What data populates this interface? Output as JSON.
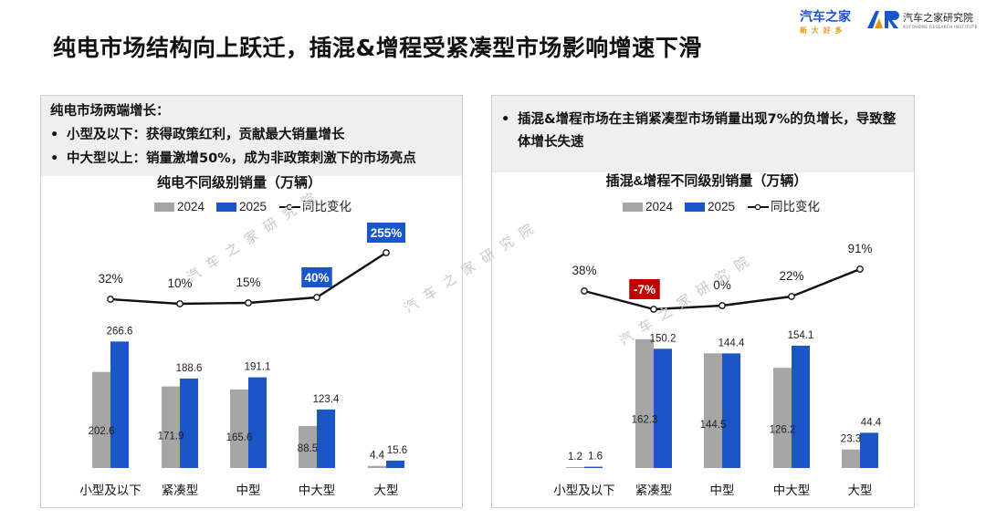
{
  "page": {
    "title": "纯电市场结构向上跃迁，插混&增程受紧凑型市场影响增速下滑",
    "watermark": "汽车之家研究院"
  },
  "logos": {
    "autohome": {
      "name": "汽车之家",
      "tagline": "新 大 好 多"
    },
    "institute": {
      "name": "汽车之家研究院",
      "english": "AUTOHOME RESEARCH INSTITUTE"
    }
  },
  "colors": {
    "s2024": "#a6a6a6",
    "s2025": "#1a56c8",
    "yoy_line": "#111111",
    "highlight_box": "#1a56c8",
    "negative_box": "#c00000"
  },
  "panels": [
    {
      "heading": "纯电市场两端增长：",
      "bullets": [
        {
          "bold": "小型及以下：",
          "text": "获得政策红利，贡献最大销量增长"
        },
        {
          "bold": "中大型以上：",
          "text": "销量激增50%，成为非政策刺激下的市场亮点"
        }
      ]
    },
    {
      "heading": "",
      "bullets": [
        {
          "bold": "",
          "text": "插混&增程市场在主销紧凑型市场销量出现7%的负增长，导致整体增长失速"
        }
      ]
    }
  ],
  "chart_data": [
    {
      "type": "bar",
      "title": "纯电不同级别销量（万辆）",
      "categories": [
        "小型及以下",
        "紧凑型",
        "中型",
        "中大型",
        "大型"
      ],
      "series": [
        {
          "name": "2024",
          "values": [
            202.6,
            171.9,
            165.6,
            88.5,
            4.4
          ]
        },
        {
          "name": "2025",
          "values": [
            266.6,
            188.6,
            191.1,
            123.4,
            15.6
          ]
        }
      ],
      "line_series": {
        "name": "同比变化",
        "values": [
          32,
          10,
          15,
          40,
          255
        ],
        "labels": [
          "32%",
          "10%",
          "15%",
          "40%",
          "255%"
        ],
        "highlight": [
          3,
          4
        ]
      },
      "legend": [
        "2024",
        "2025",
        "同比变化"
      ],
      "legend_position": "top"
    },
    {
      "type": "bar",
      "title": "插混&增程不同级别销量（万辆）",
      "categories": [
        "小型及以下",
        "紧凑型",
        "中型",
        "中大型",
        "大型"
      ],
      "series": [
        {
          "name": "2024",
          "values": [
            1.2,
            162.3,
            144.5,
            126.2,
            23.3
          ]
        },
        {
          "name": "2025",
          "values": [
            1.6,
            150.2,
            144.4,
            154.1,
            44.4
          ]
        }
      ],
      "line_series": {
        "name": "同比变化",
        "values": [
          38,
          -7,
          0,
          22,
          91
        ],
        "labels": [
          "38%",
          "-7%",
          "0%",
          "22%",
          "91%"
        ],
        "highlight": [
          1
        ]
      },
      "legend": [
        "2024",
        "2025",
        "同比变化"
      ],
      "legend_position": "top"
    }
  ]
}
